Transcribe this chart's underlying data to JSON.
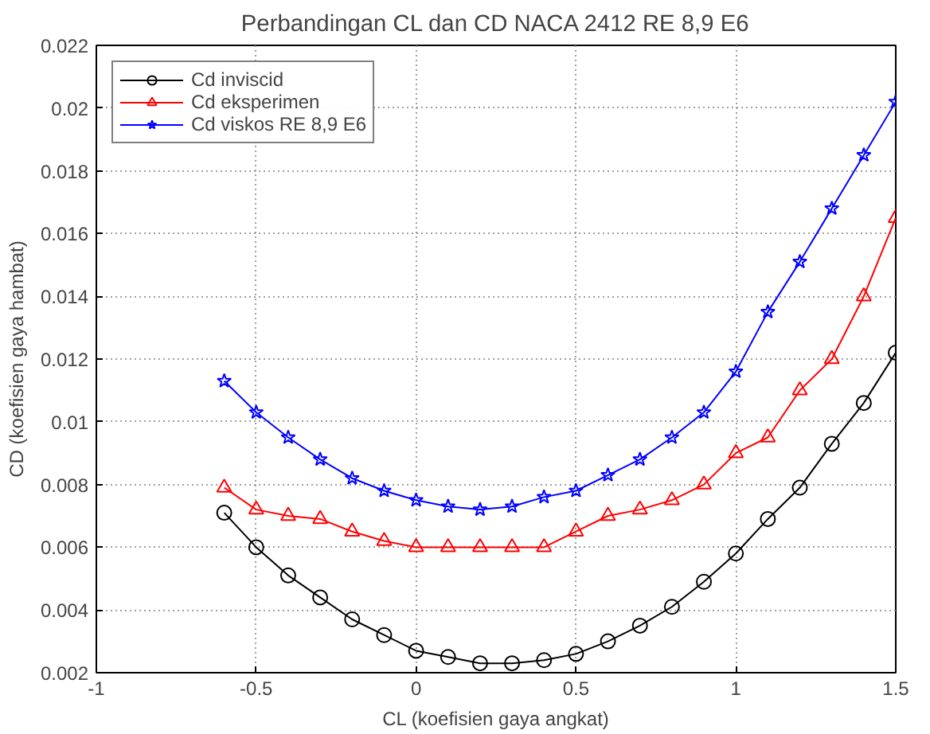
{
  "chart_data": {
    "type": "line",
    "title": "Perbandingan CL dan CD NACA 2412 RE 8,9 E6",
    "xlabel": "CL (koefisien gaya angkat)",
    "ylabel": "CD (koefisien gaya hambat)",
    "x": [
      -0.6,
      -0.5,
      -0.4,
      -0.3,
      -0.2,
      -0.1,
      0,
      0.1,
      0.2,
      0.3,
      0.4,
      0.5,
      0.6,
      0.7,
      0.8,
      0.9,
      1.0,
      1.1,
      1.2,
      1.3,
      1.4,
      1.5
    ],
    "series": [
      {
        "name": "Cd inviscid",
        "color": "#000000",
        "marker": "circle",
        "values": [
          0.0071,
          0.006,
          0.0051,
          0.0044,
          0.0037,
          0.0032,
          0.0027,
          0.0025,
          0.0023,
          0.0023,
          0.0024,
          0.0026,
          0.003,
          0.0035,
          0.0041,
          0.0049,
          0.0058,
          0.0069,
          0.0079,
          0.0093,
          0.0106,
          0.0122
        ]
      },
      {
        "name": "Cd eksperimen",
        "color": "#ff0000",
        "marker": "triangle",
        "values": [
          0.0079,
          0.0072,
          0.007,
          0.0069,
          0.0065,
          0.0062,
          0.006,
          0.006,
          0.006,
          0.006,
          0.006,
          0.0065,
          0.007,
          0.0072,
          0.0075,
          0.008,
          0.009,
          0.0095,
          0.011,
          0.012,
          0.014,
          0.0165
        ]
      },
      {
        "name": "Cd viskos RE 8,9 E6",
        "color": "#0000ff",
        "marker": "star",
        "values": [
          0.0113,
          0.0103,
          0.0095,
          0.0088,
          0.0082,
          0.0078,
          0.0075,
          0.0073,
          0.0072,
          0.0073,
          0.0076,
          0.0078,
          0.0083,
          0.0088,
          0.0095,
          0.0103,
          0.0116,
          0.0135,
          0.0151,
          0.0168,
          0.0185,
          0.0202
        ]
      }
    ],
    "xlim": [
      -1,
      1.5
    ],
    "xticks": [
      -1,
      -0.5,
      0,
      0.5,
      1,
      1.5
    ],
    "ylim": [
      0.002,
      0.022
    ],
    "yticks": [
      0.002,
      0.004,
      0.006,
      0.008,
      0.01,
      0.012,
      0.014,
      0.016,
      0.018,
      0.02,
      0.022
    ],
    "grid": true,
    "legend": "top left",
    "line_style": "solid"
  }
}
